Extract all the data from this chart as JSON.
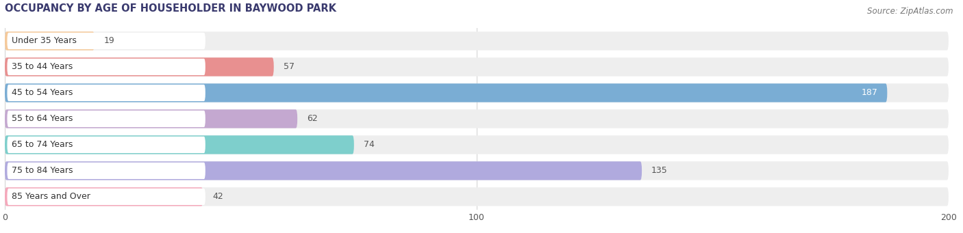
{
  "title": "OCCUPANCY BY AGE OF HOUSEHOLDER IN BAYWOOD PARK",
  "source": "Source: ZipAtlas.com",
  "categories": [
    "Under 35 Years",
    "35 to 44 Years",
    "45 to 54 Years",
    "55 to 64 Years",
    "65 to 74 Years",
    "75 to 84 Years",
    "85 Years and Over"
  ],
  "values": [
    19,
    57,
    187,
    62,
    74,
    135,
    42
  ],
  "bar_colors": [
    "#f5c99a",
    "#e89090",
    "#7aadd4",
    "#c4a8d0",
    "#7ecfcc",
    "#b0aade",
    "#f5a8bb"
  ],
  "bar_bg_color": "#eeeeee",
  "xlim_max": 200,
  "xticks": [
    0,
    100,
    200
  ],
  "label_color_inside": "#ffffff",
  "label_color_outside": "#555555",
  "title_fontsize": 10.5,
  "source_fontsize": 8.5,
  "tick_fontsize": 9,
  "bar_label_fontsize": 9,
  "category_fontsize": 9,
  "inside_threshold": 150,
  "title_color": "#3a3a6e",
  "source_color": "#777777"
}
